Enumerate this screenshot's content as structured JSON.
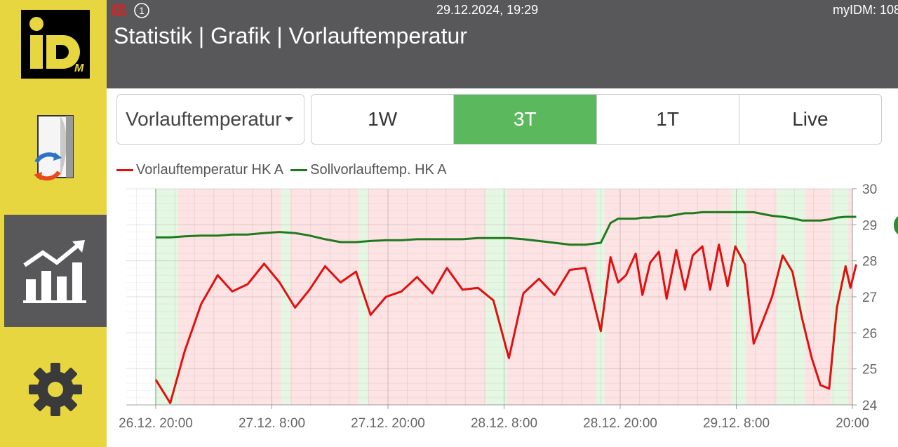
{
  "header": {
    "date_time": "29.12.2024, 19:29",
    "right_text": "myIDM: 108",
    "title": "Statistik | Grafik | Vorlauftemperatur",
    "badge_number": "1"
  },
  "logo": {
    "text": "iD",
    "sub": "M"
  },
  "controls": {
    "dropdown_value": "Vorlauftemperatur",
    "ranges": [
      "1W",
      "3T",
      "1T",
      "Live"
    ],
    "active_range": "3T"
  },
  "icons": {
    "header_heater": "heater-icon",
    "header_badge": "number-circle-icon",
    "sidebar_system": "house-cycle-icon",
    "sidebar_stats": "bar-chart-trend-icon",
    "sidebar_settings": "gear-icon"
  },
  "colors": {
    "series_actual": "#e01010",
    "series_setpoint": "#1f7a1f",
    "active_button": "#5cb85c",
    "sidebar": "#e7d63f",
    "header": "#58585a",
    "band_red": "#fde3e3",
    "band_green": "#e4f7e2"
  },
  "chart_data": {
    "type": "line",
    "legend": [
      "Vorlauftemperatur HK A",
      "Sollvorlauftemp. HK A"
    ],
    "x_ticks": [
      "26.12. 20:00",
      "27.12. 8:00",
      "27.12. 20:00",
      "28.12. 8:00",
      "28.12. 20:00",
      "29.12. 8:00",
      "20:00"
    ],
    "x_tick_hours": [
      0,
      12,
      24,
      36,
      48,
      60,
      72
    ],
    "x_range_hours": [
      -3,
      72
    ],
    "y_ticks": [
      "30",
      "29",
      "28",
      "27",
      "26",
      "25",
      "24"
    ],
    "ylim": [
      24,
      30
    ],
    "y_axis_side": "right",
    "bands": [
      {
        "from": -3,
        "to": 0,
        "state": "none"
      },
      {
        "from": 0,
        "to": 2.3,
        "state": "green"
      },
      {
        "from": 2.3,
        "to": 13,
        "state": "red"
      },
      {
        "from": 13,
        "to": 13.9,
        "state": "green"
      },
      {
        "from": 13.9,
        "to": 21,
        "state": "red"
      },
      {
        "from": 21,
        "to": 21.9,
        "state": "green"
      },
      {
        "from": 21.9,
        "to": 34.1,
        "state": "red"
      },
      {
        "from": 34.1,
        "to": 36.3,
        "state": "green"
      },
      {
        "from": 36.3,
        "to": 45.5,
        "state": "red"
      },
      {
        "from": 45.5,
        "to": 46.4,
        "state": "green"
      },
      {
        "from": 46.4,
        "to": 59.5,
        "state": "red"
      },
      {
        "from": 59.5,
        "to": 61,
        "state": "green"
      },
      {
        "from": 61,
        "to": 64.2,
        "state": "red"
      },
      {
        "from": 64.2,
        "to": 67.1,
        "state": "green"
      },
      {
        "from": 67.1,
        "to": 69.8,
        "state": "red"
      },
      {
        "from": 69.8,
        "to": 71.6,
        "state": "green"
      },
      {
        "from": 71.6,
        "to": 72,
        "state": "red"
      }
    ],
    "series": [
      {
        "name": "Vorlauftemperatur HK A",
        "color": "#e01010",
        "points": [
          [
            0,
            24.7
          ],
          [
            1.5,
            24.05
          ],
          [
            3,
            25.5
          ],
          [
            4.7,
            26.8
          ],
          [
            6.4,
            27.6
          ],
          [
            7.9,
            27.15
          ],
          [
            9.5,
            27.35
          ],
          [
            11.2,
            27.92
          ],
          [
            12.8,
            27.4
          ],
          [
            14.4,
            26.7
          ],
          [
            15.9,
            27.2
          ],
          [
            17.5,
            27.85
          ],
          [
            19.1,
            27.4
          ],
          [
            20.7,
            27.7
          ],
          [
            22.2,
            26.5
          ],
          [
            23.8,
            27.0
          ],
          [
            25.4,
            27.15
          ],
          [
            27.0,
            27.55
          ],
          [
            28.6,
            27.1
          ],
          [
            30.1,
            27.8
          ],
          [
            31.7,
            27.2
          ],
          [
            33.3,
            27.25
          ],
          [
            34.9,
            26.9
          ],
          [
            36.5,
            25.3
          ],
          [
            38.0,
            27.1
          ],
          [
            39.6,
            27.5
          ],
          [
            41.2,
            27.05
          ],
          [
            42.8,
            27.75
          ],
          [
            44.4,
            27.8
          ],
          [
            46.0,
            26.05
          ],
          [
            47.0,
            28.1
          ],
          [
            47.8,
            27.4
          ],
          [
            48.6,
            27.6
          ],
          [
            49.6,
            28.2
          ],
          [
            50.3,
            27.05
          ],
          [
            51.1,
            27.95
          ],
          [
            52.0,
            28.25
          ],
          [
            52.8,
            26.95
          ],
          [
            53.8,
            28.3
          ],
          [
            54.7,
            27.2
          ],
          [
            55.5,
            28.15
          ],
          [
            56.5,
            28.4
          ],
          [
            57.3,
            27.2
          ],
          [
            58.2,
            28.45
          ],
          [
            59.1,
            27.3
          ],
          [
            59.9,
            28.4
          ],
          [
            60.9,
            27.9
          ],
          [
            61.8,
            25.7
          ],
          [
            62.7,
            26.3
          ],
          [
            63.7,
            27.0
          ],
          [
            64.8,
            28.15
          ],
          [
            65.8,
            27.7
          ],
          [
            66.8,
            26.4
          ],
          [
            67.8,
            25.3
          ],
          [
            68.7,
            24.55
          ],
          [
            69.6,
            24.45
          ],
          [
            70.4,
            26.7
          ],
          [
            71.3,
            27.85
          ],
          [
            71.8,
            27.25
          ],
          [
            72.4,
            27.9
          ]
        ]
      },
      {
        "name": "Sollvorlauftemp. HK A",
        "color": "#1f7a1f",
        "points": [
          [
            0,
            28.65
          ],
          [
            1.5,
            28.65
          ],
          [
            3,
            28.68
          ],
          [
            4.7,
            28.7
          ],
          [
            6.4,
            28.7
          ],
          [
            7.9,
            28.73
          ],
          [
            9.5,
            28.73
          ],
          [
            11.2,
            28.77
          ],
          [
            12.8,
            28.8
          ],
          [
            14.4,
            28.77
          ],
          [
            15.9,
            28.7
          ],
          [
            17.5,
            28.6
          ],
          [
            19.1,
            28.52
          ],
          [
            20.7,
            28.52
          ],
          [
            22.2,
            28.55
          ],
          [
            23.8,
            28.57
          ],
          [
            25.4,
            28.57
          ],
          [
            27.0,
            28.6
          ],
          [
            28.6,
            28.6
          ],
          [
            30.1,
            28.6
          ],
          [
            31.7,
            28.6
          ],
          [
            33.3,
            28.63
          ],
          [
            34.9,
            28.63
          ],
          [
            36.5,
            28.63
          ],
          [
            38.0,
            28.6
          ],
          [
            39.6,
            28.55
          ],
          [
            41.2,
            28.5
          ],
          [
            42.8,
            28.45
          ],
          [
            44.4,
            28.45
          ],
          [
            46.0,
            28.5
          ],
          [
            47.0,
            29.05
          ],
          [
            47.8,
            29.17
          ],
          [
            48.6,
            29.17
          ],
          [
            49.6,
            29.17
          ],
          [
            50.3,
            29.2
          ],
          [
            51.1,
            29.2
          ],
          [
            52.0,
            29.23
          ],
          [
            52.8,
            29.23
          ],
          [
            53.8,
            29.28
          ],
          [
            54.7,
            29.32
          ],
          [
            55.5,
            29.32
          ],
          [
            56.5,
            29.35
          ],
          [
            57.3,
            29.35
          ],
          [
            58.2,
            29.35
          ],
          [
            59.1,
            29.35
          ],
          [
            59.9,
            29.35
          ],
          [
            60.9,
            29.35
          ],
          [
            61.8,
            29.35
          ],
          [
            62.7,
            29.3
          ],
          [
            63.7,
            29.25
          ],
          [
            64.8,
            29.22
          ],
          [
            65.8,
            29.18
          ],
          [
            66.8,
            29.12
          ],
          [
            67.8,
            29.12
          ],
          [
            68.7,
            29.12
          ],
          [
            69.6,
            29.15
          ],
          [
            70.4,
            29.2
          ],
          [
            71.3,
            29.22
          ],
          [
            72.4,
            29.22
          ]
        ]
      }
    ]
  }
}
